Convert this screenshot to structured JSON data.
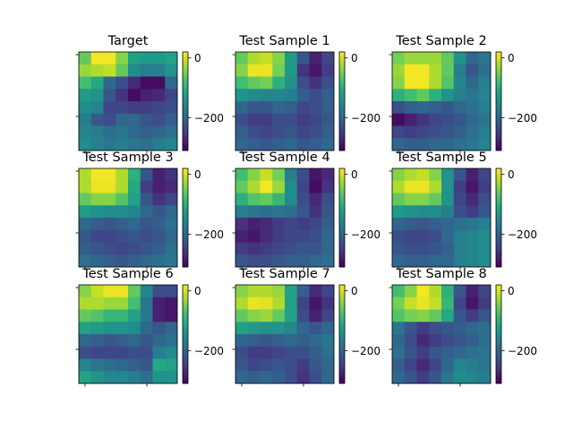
{
  "figure": {
    "background": "#ffffff"
  },
  "chart_data": [
    {
      "type": "heatmap",
      "title": "Target",
      "colorbar": {
        "ticks": [
          0,
          -200
        ],
        "range": [
          -310,
          20
        ],
        "colormap": "viridis"
      },
      "grid": [
        [
          -60,
          15,
          15,
          -40,
          -120,
          -130,
          -130,
          -120
        ],
        [
          -30,
          -20,
          -10,
          -60,
          -150,
          -170,
          -170,
          -140
        ],
        [
          -80,
          -110,
          -200,
          -230,
          -270,
          -300,
          -300,
          -200
        ],
        [
          -130,
          -140,
          -220,
          -260,
          -300,
          -280,
          -270,
          -240
        ],
        [
          -150,
          -160,
          -240,
          -240,
          -250,
          -250,
          -240,
          -230
        ],
        [
          -170,
          -220,
          -230,
          -200,
          -200,
          -220,
          -230,
          -210
        ],
        [
          -160,
          -170,
          -190,
          -180,
          -200,
          -210,
          -200,
          -190
        ],
        [
          -150,
          -170,
          -180,
          -170,
          -180,
          -190,
          -170,
          -160
        ]
      ]
    },
    {
      "type": "heatmap",
      "title": "Test Sample 1",
      "colorbar": {
        "ticks": [
          0,
          -200
        ],
        "range": [
          -310,
          20
        ],
        "colormap": "viridis"
      },
      "grid": [
        [
          -60,
          -20,
          -10,
          -40,
          -130,
          -220,
          -280,
          -240
        ],
        [
          -40,
          10,
          10,
          -50,
          -130,
          -260,
          -290,
          -250
        ],
        [
          -80,
          -60,
          -50,
          -100,
          -140,
          -230,
          -260,
          -230
        ],
        [
          -140,
          -150,
          -160,
          -160,
          -170,
          -210,
          -230,
          -210
        ],
        [
          -200,
          -220,
          -220,
          -200,
          -210,
          -240,
          -230,
          -210
        ],
        [
          -230,
          -250,
          -250,
          -230,
          -230,
          -250,
          -240,
          -220
        ],
        [
          -210,
          -230,
          -240,
          -230,
          -220,
          -240,
          -230,
          -210
        ],
        [
          -200,
          -210,
          -220,
          -210,
          -200,
          -220,
          -210,
          -200
        ]
      ]
    },
    {
      "type": "heatmap",
      "title": "Test Sample 2",
      "colorbar": {
        "ticks": [
          0,
          -200
        ],
        "range": [
          -310,
          20
        ],
        "colormap": "viridis"
      },
      "grid": [
        [
          -50,
          -30,
          -30,
          -30,
          -60,
          -140,
          -200,
          -180
        ],
        [
          -30,
          15,
          15,
          -20,
          -60,
          -170,
          -220,
          -190
        ],
        [
          -40,
          15,
          15,
          -20,
          -70,
          -160,
          -200,
          -170
        ],
        [
          -100,
          -80,
          -60,
          -100,
          -140,
          -170,
          -180,
          -160
        ],
        [
          -230,
          -210,
          -200,
          -210,
          -220,
          -200,
          -190,
          -170
        ],
        [
          -300,
          -280,
          -260,
          -240,
          -230,
          -220,
          -200,
          -180
        ],
        [
          -240,
          -250,
          -240,
          -230,
          -220,
          -210,
          -190,
          -170
        ],
        [
          -200,
          -210,
          -210,
          -200,
          -200,
          -190,
          -180,
          -160
        ]
      ]
    },
    {
      "type": "heatmap",
      "title": "Test Sample 3",
      "colorbar": {
        "ticks": [
          0,
          -200
        ],
        "range": [
          -310,
          20
        ],
        "colormap": "viridis"
      },
      "grid": [
        [
          -20,
          15,
          15,
          -20,
          -100,
          -220,
          -280,
          -260
        ],
        [
          -20,
          10,
          10,
          -20,
          -110,
          -250,
          -280,
          -270
        ],
        [
          -60,
          -40,
          -40,
          -70,
          -120,
          -220,
          -260,
          -240
        ],
        [
          -130,
          -140,
          -150,
          -150,
          -160,
          -200,
          -220,
          -200
        ],
        [
          -200,
          -210,
          -220,
          -210,
          -200,
          -220,
          -210,
          -190
        ],
        [
          -220,
          -240,
          -240,
          -230,
          -220,
          -230,
          -220,
          -200
        ],
        [
          -210,
          -220,
          -230,
          -240,
          -230,
          -220,
          -210,
          -190
        ],
        [
          -190,
          -200,
          -210,
          -220,
          -210,
          -200,
          -190,
          -180
        ]
      ]
    },
    {
      "type": "heatmap",
      "title": "Test Sample 4",
      "colorbar": {
        "ticks": [
          0,
          -200
        ],
        "range": [
          -310,
          20
        ],
        "colormap": "viridis"
      },
      "grid": [
        [
          -80,
          -40,
          -10,
          -50,
          -170,
          -230,
          -290,
          -270
        ],
        [
          -60,
          -20,
          15,
          -30,
          -150,
          -240,
          -300,
          -260
        ],
        [
          -100,
          -70,
          -60,
          -90,
          -150,
          -230,
          -270,
          -230
        ],
        [
          -170,
          -180,
          -190,
          -180,
          -190,
          -220,
          -260,
          -220
        ],
        [
          -260,
          -280,
          -270,
          -250,
          -240,
          -250,
          -240,
          -210
        ],
        [
          -280,
          -290,
          -270,
          -250,
          -240,
          -240,
          -230,
          -200
        ],
        [
          -250,
          -260,
          -250,
          -240,
          -230,
          -220,
          -220,
          -200
        ],
        [
          -220,
          -230,
          -230,
          -220,
          -210,
          -210,
          -200,
          -190
        ]
      ]
    },
    {
      "type": "heatmap",
      "title": "Test Sample 5",
      "colorbar": {
        "ticks": [
          0,
          -200
        ],
        "range": [
          -310,
          20
        ],
        "colormap": "viridis"
      },
      "grid": [
        [
          -40,
          -20,
          -10,
          -40,
          -140,
          -220,
          -280,
          -240
        ],
        [
          -20,
          10,
          10,
          -20,
          -140,
          -250,
          -290,
          -250
        ],
        [
          -60,
          -40,
          -40,
          -60,
          -140,
          -240,
          -270,
          -230
        ],
        [
          -130,
          -140,
          -150,
          -150,
          -170,
          -230,
          -250,
          -220
        ],
        [
          -200,
          -210,
          -220,
          -210,
          -200,
          -190,
          -180,
          -170
        ],
        [
          -230,
          -240,
          -240,
          -230,
          -200,
          -170,
          -160,
          -150
        ],
        [
          -220,
          -230,
          -230,
          -220,
          -210,
          -170,
          -160,
          -150
        ],
        [
          -200,
          -210,
          -210,
          -200,
          -200,
          -170,
          -160,
          -150
        ]
      ]
    },
    {
      "type": "heatmap",
      "title": "Test Sample 6",
      "colorbar": {
        "ticks": [
          0,
          -200
        ],
        "range": [
          -310,
          20
        ],
        "colormap": "viridis"
      },
      "grid": [
        [
          -40,
          -10,
          10,
          10,
          -60,
          -160,
          -230,
          -230
        ],
        [
          -20,
          -20,
          -30,
          -30,
          -80,
          -180,
          -280,
          -290
        ],
        [
          -60,
          -70,
          -90,
          -90,
          -120,
          -180,
          -280,
          -290
        ],
        [
          -120,
          -130,
          -140,
          -140,
          -150,
          -200,
          -220,
          -200
        ],
        [
          -200,
          -210,
          -220,
          -210,
          -200,
          -220,
          -200,
          -190
        ],
        [
          -230,
          -240,
          -240,
          -240,
          -230,
          -230,
          -170,
          -150
        ],
        [
          -160,
          -180,
          -190,
          -200,
          -210,
          -220,
          -110,
          -120
        ],
        [
          -120,
          -140,
          -160,
          -160,
          -170,
          -190,
          -140,
          -140
        ]
      ]
    },
    {
      "type": "heatmap",
      "title": "Test Sample 7",
      "colorbar": {
        "ticks": [
          0,
          -200
        ],
        "range": [
          -310,
          20
        ],
        "colormap": "viridis"
      },
      "grid": [
        [
          -40,
          -20,
          -20,
          -30,
          -120,
          -210,
          -270,
          -240
        ],
        [
          -20,
          10,
          5,
          -20,
          -120,
          -240,
          -290,
          -260
        ],
        [
          -60,
          -40,
          -30,
          -60,
          -120,
          -230,
          -280,
          -240
        ],
        [
          -120,
          -130,
          -140,
          -140,
          -160,
          -200,
          -220,
          -200
        ],
        [
          -200,
          -210,
          -220,
          -210,
          -200,
          -210,
          -200,
          -180
        ],
        [
          -230,
          -250,
          -250,
          -240,
          -230,
          -230,
          -210,
          -190
        ],
        [
          -220,
          -240,
          -230,
          -220,
          -230,
          -250,
          -220,
          -200
        ],
        [
          -200,
          -210,
          -200,
          -210,
          -230,
          -260,
          -230,
          -200
        ]
      ]
    },
    {
      "type": "heatmap",
      "title": "Test Sample 8",
      "colorbar": {
        "ticks": [
          0,
          -200
        ],
        "range": [
          -310,
          20
        ],
        "colormap": "viridis"
      },
      "grid": [
        [
          -80,
          -40,
          15,
          -20,
          -100,
          -220,
          -280,
          -240
        ],
        [
          -50,
          -10,
          10,
          -10,
          -90,
          -240,
          -290,
          -250
        ],
        [
          -70,
          -50,
          -40,
          -60,
          -110,
          -220,
          -250,
          -220
        ],
        [
          -180,
          -220,
          -250,
          -230,
          -220,
          -210,
          -200,
          -190
        ],
        [
          -200,
          -230,
          -270,
          -250,
          -230,
          -220,
          -210,
          -190
        ],
        [
          -190,
          -220,
          -250,
          -220,
          -210,
          -200,
          -190,
          -180
        ],
        [
          -210,
          -240,
          -270,
          -240,
          -200,
          -160,
          -170,
          -180
        ],
        [
          -200,
          -220,
          -250,
          -220,
          -180,
          -150,
          -160,
          -170
        ]
      ]
    }
  ]
}
